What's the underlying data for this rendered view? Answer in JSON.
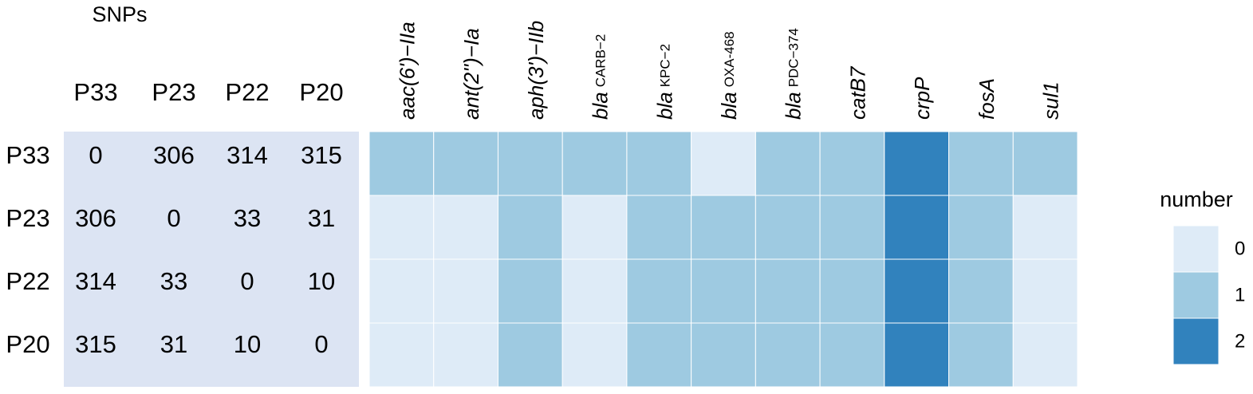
{
  "chart_data": [
    {
      "type": "table",
      "title": "SNPs",
      "columns": [
        "P33",
        "P23",
        "P22",
        "P20"
      ],
      "rows": [
        "P33",
        "P23",
        "P22",
        "P20"
      ],
      "values": [
        [
          0,
          306,
          314,
          315
        ],
        [
          306,
          0,
          33,
          31
        ],
        [
          314,
          33,
          0,
          10
        ],
        [
          315,
          31,
          10,
          0
        ]
      ],
      "color": "#dce4f3"
    },
    {
      "type": "heatmap",
      "categories": [
        {
          "text": "aac(6')−IIa"
        },
        {
          "text": "ant(2'')−Ia"
        },
        {
          "text": "aph(3')−IIb"
        },
        {
          "text": "bla",
          "sub": "CARB−2"
        },
        {
          "text": "bla",
          "sub": "KPC−2"
        },
        {
          "text": "bla",
          "sub": "OXA-468"
        },
        {
          "text": "bla",
          "sub": "PDC−374"
        },
        {
          "text": "catB7"
        },
        {
          "text": "crpP"
        },
        {
          "text": "fosA"
        },
        {
          "text": "sul1"
        }
      ],
      "rows": [
        "P33",
        "P23",
        "P22",
        "P20"
      ],
      "values": [
        [
          1,
          1,
          1,
          1,
          1,
          0,
          1,
          1,
          2,
          1,
          1
        ],
        [
          0,
          0,
          1,
          0,
          1,
          1,
          1,
          1,
          2,
          1,
          0
        ],
        [
          0,
          0,
          1,
          0,
          1,
          1,
          1,
          1,
          2,
          1,
          0
        ],
        [
          0,
          0,
          1,
          0,
          1,
          1,
          1,
          1,
          2,
          1,
          0
        ]
      ],
      "legend_title": "number",
      "legend_ticks": [
        0,
        1,
        2
      ],
      "colors": [
        "#deebf7",
        "#9ecae1",
        "#3182bd"
      ]
    }
  ]
}
